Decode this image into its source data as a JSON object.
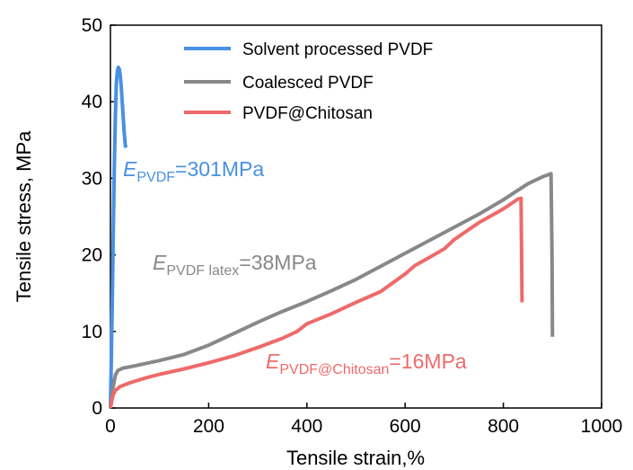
{
  "chart_data": {
    "type": "line",
    "xlabel": "Tensile strain,%",
    "ylabel": "Tensile stress, MPa",
    "xlim": [
      0,
      1000
    ],
    "ylim": [
      0,
      50
    ],
    "xticks": [
      "0",
      "200",
      "400",
      "600",
      "800",
      "1000"
    ],
    "yticks": [
      "0",
      "10",
      "20",
      "30",
      "40",
      "50"
    ],
    "grid": false,
    "legend_position": "top-center",
    "series": [
      {
        "name": "Solvent processed PVDF",
        "color": "#4a90e2",
        "x": [
          0,
          2,
          4,
          6,
          8,
          10,
          12,
          14,
          16,
          18,
          20,
          22,
          24,
          26,
          28,
          30,
          31
        ],
        "y": [
          0,
          7,
          15,
          24,
          32,
          38,
          42.5,
          44,
          44.5,
          44.3,
          43.5,
          42,
          40,
          38,
          36,
          34.5,
          34
        ]
      },
      {
        "name": "Coalesced PVDF",
        "color": "#888888",
        "x": [
          0,
          5,
          10,
          15,
          25,
          50,
          100,
          150,
          200,
          250,
          300,
          350,
          400,
          450,
          500,
          550,
          600,
          650,
          700,
          750,
          800,
          850,
          880,
          897,
          899,
          900
        ],
        "y": [
          0,
          2.5,
          4.3,
          4.9,
          5.2,
          5.5,
          6.2,
          7.0,
          8.2,
          9.7,
          11.2,
          12.6,
          13.9,
          15.3,
          16.8,
          18.5,
          20.2,
          21.9,
          23.6,
          25.3,
          27.2,
          29.3,
          30.2,
          30.6,
          20,
          9.3
        ]
      },
      {
        "name": "PVDF@Chitosan",
        "color": "#ee6a6a",
        "x": [
          0,
          5,
          10,
          20,
          40,
          70,
          100,
          150,
          200,
          250,
          300,
          350,
          380,
          400,
          450,
          500,
          550,
          600,
          620,
          650,
          680,
          700,
          750,
          800,
          830,
          836,
          838
        ],
        "y": [
          0,
          1.6,
          2.3,
          2.8,
          3.3,
          3.9,
          4.4,
          5.1,
          5.9,
          6.8,
          7.9,
          9.1,
          10.0,
          11.0,
          12.3,
          13.8,
          15.2,
          17.5,
          18.6,
          19.7,
          20.8,
          22.0,
          24.2,
          26.0,
          27.3,
          27.4,
          13.8
        ]
      }
    ],
    "annotations": [
      {
        "text": "E",
        "sub": "PVDF",
        "rest": "=301MPa",
        "color": "#4a90e2"
      },
      {
        "text": "E",
        "sub": "PVDF latex",
        "rest": "=38MPa",
        "color": "#888888"
      },
      {
        "text": "E",
        "sub": "PVDF@Chitosan",
        "rest": "=16MPa",
        "color": "#ee6a6a"
      }
    ]
  }
}
